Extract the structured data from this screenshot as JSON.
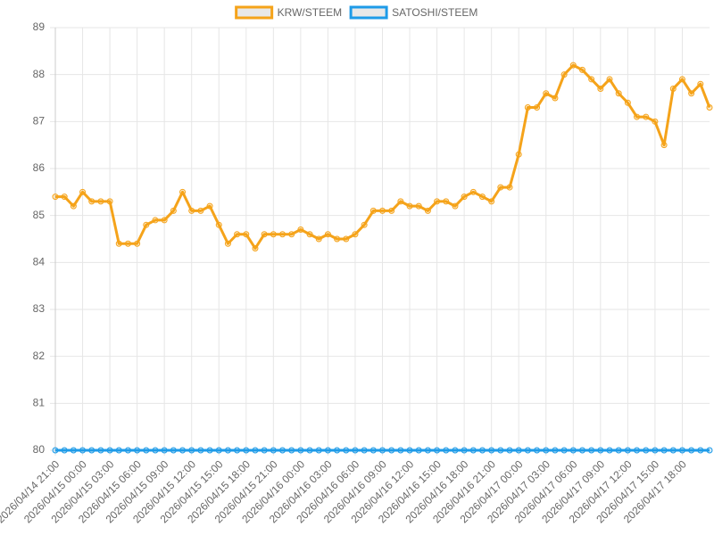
{
  "chart_data": {
    "type": "line",
    "categories": [
      "2026/04/14 21:00",
      null,
      null,
      "2026/04/15 00:00",
      null,
      null,
      "2026/04/15 03:00",
      null,
      null,
      "2026/04/15 06:00",
      null,
      null,
      "2026/04/15 09:00",
      null,
      null,
      "2026/04/15 12:00",
      null,
      null,
      "2026/04/15 15:00",
      null,
      null,
      "2026/04/15 18:00",
      null,
      null,
      "2026/04/15 21:00",
      null,
      null,
      "2026/04/16 00:00",
      null,
      null,
      "2026/04/16 03:00",
      null,
      null,
      "2026/04/16 06:00",
      null,
      null,
      "2026/04/16 09:00",
      null,
      null,
      "2026/04/16 12:00",
      null,
      null,
      "2026/04/16 15:00",
      null,
      null,
      "2026/04/16 18:00",
      null,
      null,
      "2026/04/16 21:00",
      null,
      null,
      "2026/04/17 00:00",
      null,
      null,
      "2026/04/17 03:00",
      null,
      null,
      "2026/04/17 06:00",
      null,
      null,
      "2026/04/17 09:00",
      null,
      null,
      "2026/04/17 12:00",
      null,
      null,
      "2026/04/17 15:00",
      null,
      null,
      "2026/04/17 18:00",
      null,
      null,
      null
    ],
    "series": [
      {
        "name": "KRW/STEEM",
        "color": "#f5a31a",
        "values": [
          85.4,
          85.4,
          85.2,
          85.5,
          85.3,
          85.3,
          85.3,
          84.4,
          84.4,
          84.4,
          84.8,
          84.9,
          84.9,
          85.1,
          85.5,
          85.1,
          85.1,
          85.2,
          84.8,
          84.4,
          84.6,
          84.6,
          84.3,
          84.6,
          84.6,
          84.6,
          84.6,
          84.7,
          84.6,
          84.5,
          84.6,
          84.5,
          84.5,
          84.6,
          84.8,
          85.1,
          85.1,
          85.1,
          85.3,
          85.2,
          85.2,
          85.1,
          85.3,
          85.3,
          85.2,
          85.4,
          85.5,
          85.4,
          85.3,
          85.6,
          85.6,
          86.3,
          87.3,
          87.3,
          87.6,
          87.5,
          88.0,
          88.2,
          88.1,
          87.9,
          87.7,
          87.9,
          87.6,
          87.4,
          87.1,
          87.1,
          87.0,
          86.5,
          87.7,
          87.9,
          87.6,
          87.8,
          87.3
        ]
      },
      {
        "name": "SATOSHI/STEEM",
        "color": "#1e9be8",
        "values": [
          80,
          80,
          80,
          80,
          80,
          80,
          80,
          80,
          80,
          80,
          80,
          80,
          80,
          80,
          80,
          80,
          80,
          80,
          80,
          80,
          80,
          80,
          80,
          80,
          80,
          80,
          80,
          80,
          80,
          80,
          80,
          80,
          80,
          80,
          80,
          80,
          80,
          80,
          80,
          80,
          80,
          80,
          80,
          80,
          80,
          80,
          80,
          80,
          80,
          80,
          80,
          80,
          80,
          80,
          80,
          80,
          80,
          80,
          80,
          80,
          80,
          80,
          80,
          80,
          80,
          80,
          80,
          80,
          80,
          80,
          80,
          80,
          80
        ]
      }
    ],
    "ylim": [
      80,
      89
    ],
    "yticks": [
      80,
      81,
      82,
      83,
      84,
      85,
      86,
      87,
      88,
      89
    ],
    "grid": true,
    "legend": "top"
  }
}
